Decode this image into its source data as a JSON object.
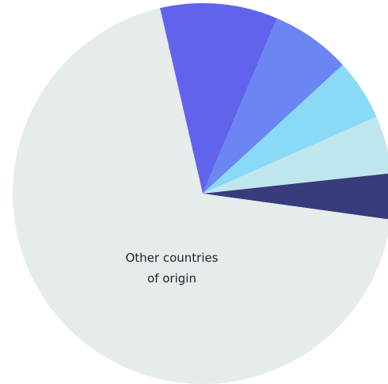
{
  "chart_data": {
    "type": "pie",
    "title": "",
    "slices": [
      {
        "label": "",
        "value": 10.0,
        "color": "#6163ec"
      },
      {
        "label": "",
        "value": 6.8,
        "color": "#6b85f3"
      },
      {
        "label": "",
        "value": 5.2,
        "color": "#8ad9f7"
      },
      {
        "label": "",
        "value": 4.9,
        "color": "#bfe6ee"
      },
      {
        "label": "",
        "value": 3.9,
        "color": "#383b7c"
      },
      {
        "label": "Other countries of origin",
        "label_lines": [
          "Other countries",
          "of origin"
        ],
        "value": 69.2,
        "color": "#e6eceb"
      }
    ]
  }
}
